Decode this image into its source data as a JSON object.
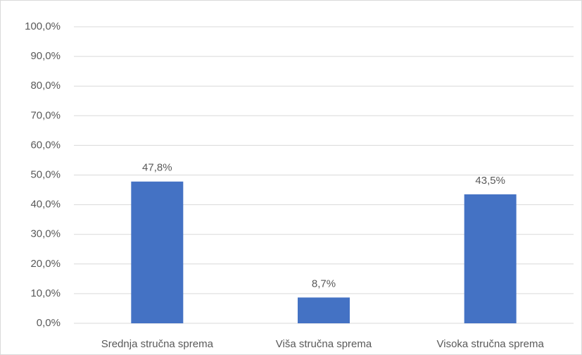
{
  "chart_data": {
    "type": "bar",
    "categories": [
      "Srednja stručna sprema",
      "Viša stručna sprema",
      "Visoka stručna sprema"
    ],
    "values": [
      47.8,
      8.7,
      43.5
    ],
    "value_labels": [
      "47,8%",
      "8,7%",
      "43,5%"
    ],
    "color": "#4472c4",
    "ylim": [
      0,
      100
    ],
    "yticks": [
      {
        "value": 0,
        "label": "0,0%"
      },
      {
        "value": 10,
        "label": "10,0%"
      },
      {
        "value": 20,
        "label": "20,0%"
      },
      {
        "value": 30,
        "label": "30,0%"
      },
      {
        "value": 40,
        "label": "40,0%"
      },
      {
        "value": 50,
        "label": "50,0%"
      },
      {
        "value": 60,
        "label": "60,0%"
      },
      {
        "value": 70,
        "label": "70,0%"
      },
      {
        "value": 80,
        "label": "80,0%"
      },
      {
        "value": 90,
        "label": "90,0%"
      },
      {
        "value": 100,
        "label": "100,0%"
      }
    ],
    "grid": true
  }
}
